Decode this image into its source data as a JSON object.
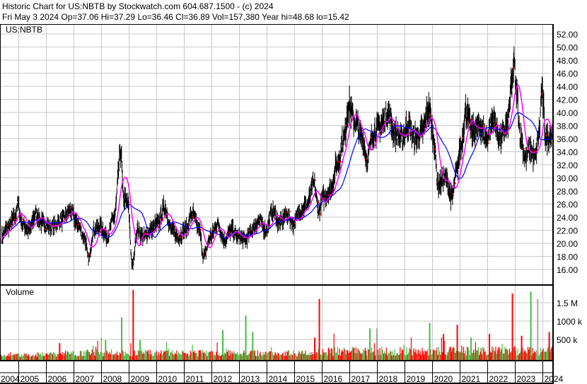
{
  "header": {
    "title": "Historic Chart for US:NBTB by Stockwatch.com 604.687.1500 - (c) 2024",
    "quote": "Fri May  3 2024  Op=37.06  Hi=37.29  Lo=36.46  Cl=36.89  Vol=157,380  Year hi=48.68  lo=15.42"
  },
  "colors": {
    "bars": "#000000",
    "close_marker": "#ff0000",
    "ma_short": "#ff00ff",
    "ma_long": "#0000ff",
    "vol_up": "#44bb44",
    "vol_down": "#ff0000",
    "vol_flat": "#aaaaaa",
    "grid": "#c8c8c8"
  },
  "chart_data": [
    {
      "type": "line",
      "label": "US:NBTB",
      "grid": true,
      "ylim": [
        15,
        53
      ],
      "y_ticks": [
        "52.00",
        "50.00",
        "48.00",
        "46.00",
        "44.00",
        "42.00",
        "40.00",
        "38.00",
        "36.00",
        "34.00",
        "32.00",
        "30.00",
        "28.00",
        "26.00",
        "24.00",
        "22.00",
        "20.00",
        "18.00",
        "16.00"
      ],
      "x_ticks": [
        "2004",
        "2005",
        "2006",
        "2007",
        "2008",
        "2009",
        "2010",
        "2011",
        "2012",
        "2013",
        "2014",
        "2015",
        "2016",
        "2017",
        "2018",
        "2019",
        "2020",
        "2021",
        "2022",
        "2023",
        "2024"
      ],
      "series_close": [
        [
          "2004-05",
          21.0
        ],
        [
          "2004-08",
          22.5
        ],
        [
          "2004-11",
          24
        ],
        [
          "2004-12",
          26
        ],
        [
          "2005-02",
          23
        ],
        [
          "2005-05",
          22
        ],
        [
          "2005-08",
          24.5
        ],
        [
          "2005-11",
          23
        ],
        [
          "2006-03",
          22.5
        ],
        [
          "2006-07",
          23.5
        ],
        [
          "2006-11",
          25
        ],
        [
          "2007-02",
          23
        ],
        [
          "2007-05",
          21
        ],
        [
          "2007-07",
          17.5
        ],
        [
          "2007-09",
          22
        ],
        [
          "2007-12",
          22.5
        ],
        [
          "2008-03",
          21
        ],
        [
          "2008-06",
          24
        ],
        [
          "2008-09",
          34
        ],
        [
          "2008-10",
          27
        ],
        [
          "2008-12",
          26
        ],
        [
          "2009-02",
          16.5
        ],
        [
          "2009-04",
          22
        ],
        [
          "2009-07",
          21
        ],
        [
          "2009-10",
          22
        ],
        [
          "2010-01",
          23
        ],
        [
          "2010-04",
          25.5
        ],
        [
          "2010-07",
          22
        ],
        [
          "2010-10",
          21
        ],
        [
          "2011-01",
          22
        ],
        [
          "2011-04",
          24.5
        ],
        [
          "2011-07",
          22
        ],
        [
          "2011-09",
          18
        ],
        [
          "2011-12",
          21
        ],
        [
          "2012-03",
          23
        ],
        [
          "2012-06",
          20.5
        ],
        [
          "2012-09",
          22
        ],
        [
          "2012-12",
          21
        ],
        [
          "2013-03",
          20.5
        ],
        [
          "2013-06",
          22
        ],
        [
          "2013-09",
          23.5
        ],
        [
          "2013-12",
          22
        ],
        [
          "2014-03",
          25
        ],
        [
          "2014-06",
          23
        ],
        [
          "2014-09",
          24.5
        ],
        [
          "2014-12",
          23
        ],
        [
          "2015-03",
          25
        ],
        [
          "2015-06",
          26
        ],
        [
          "2015-09",
          29
        ],
        [
          "2015-11",
          25
        ],
        [
          "2016-01",
          27
        ],
        [
          "2016-04",
          28
        ],
        [
          "2016-07",
          32
        ],
        [
          "2016-10",
          36
        ],
        [
          "2016-12",
          41
        ],
        [
          "2017-03",
          38.5
        ],
        [
          "2017-06",
          36
        ],
        [
          "2017-08",
          33
        ],
        [
          "2017-11",
          37
        ],
        [
          "2018-02",
          38
        ],
        [
          "2018-05",
          40
        ],
        [
          "2018-08",
          37
        ],
        [
          "2018-11",
          36
        ],
        [
          "2019-02",
          38
        ],
        [
          "2019-05",
          36
        ],
        [
          "2019-08",
          37
        ],
        [
          "2019-11",
          40.5
        ],
        [
          "2020-01",
          36
        ],
        [
          "2020-03",
          29
        ],
        [
          "2020-06",
          30
        ],
        [
          "2020-09",
          27
        ],
        [
          "2020-11",
          31
        ],
        [
          "2021-01",
          35
        ],
        [
          "2021-03",
          40
        ],
        [
          "2021-06",
          37
        ],
        [
          "2021-09",
          38
        ],
        [
          "2021-12",
          36
        ],
        [
          "2022-03",
          39
        ],
        [
          "2022-06",
          36
        ],
        [
          "2022-09",
          38
        ],
        [
          "2022-11",
          44
        ],
        [
          "2022-12",
          47.5
        ],
        [
          "2023-01",
          43
        ],
        [
          "2023-03",
          36
        ],
        [
          "2023-05",
          33
        ],
        [
          "2023-07",
          34.5
        ],
        [
          "2023-09",
          33
        ],
        [
          "2023-11",
          37
        ],
        [
          "2023-12",
          43
        ],
        [
          "2024-02",
          36
        ],
        [
          "2024-05",
          36.89
        ]
      ]
    },
    {
      "type": "bar",
      "label": "Volume",
      "grid": true,
      "y_ticks": [
        "500 k",
        "1000 k",
        "1.5 M"
      ],
      "notable_volumes": [
        [
          "2004-12",
          120000,
          "up"
        ],
        [
          "2006-06",
          400000,
          "down"
        ],
        [
          "2008-02",
          480000,
          "up"
        ],
        [
          "2008-09",
          1100000,
          "up"
        ],
        [
          "2009-02",
          1850000,
          "down"
        ],
        [
          "2009-05",
          480000,
          "up"
        ],
        [
          "2012-05",
          750000,
          "up"
        ],
        [
          "2013-03",
          1150000,
          "up"
        ],
        [
          "2013-06",
          700000,
          "up"
        ],
        [
          "2015-11",
          1600000,
          "down"
        ],
        [
          "2015-09",
          550000,
          "down"
        ],
        [
          "2017-09",
          800000,
          "up"
        ],
        [
          "2017-12",
          800000,
          "flat"
        ],
        [
          "2019-11",
          950000,
          "up"
        ],
        [
          "2020-05",
          650000,
          "down"
        ],
        [
          "2020-11",
          900000,
          "down"
        ],
        [
          "2021-05",
          550000,
          "up"
        ],
        [
          "2022-01",
          650000,
          "down"
        ],
        [
          "2022-11",
          1750000,
          "down"
        ],
        [
          "2023-03",
          600000,
          "down"
        ],
        [
          "2023-07",
          1800000,
          "up"
        ],
        [
          "2023-10",
          1600000,
          "flat"
        ],
        [
          "2024-03",
          700000,
          "down"
        ]
      ]
    }
  ]
}
